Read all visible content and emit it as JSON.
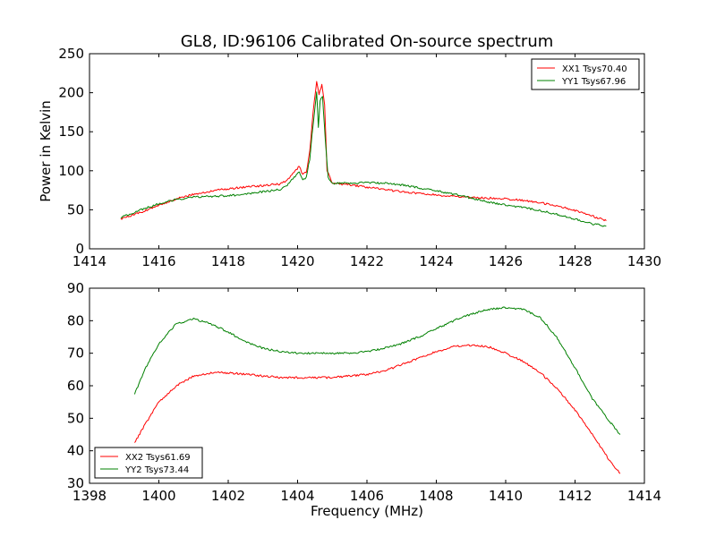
{
  "figure": {
    "title": "GL8, ID:96106 Calibrated On-source spectrum",
    "xlabel": "Frequency (MHz)",
    "ylabel": "Power in Kelvin"
  },
  "chart_data": [
    {
      "type": "line",
      "panel": "top",
      "title": "GL8, ID:96106 Calibrated On-source spectrum",
      "xlabel": "",
      "ylabel": "Power in Kelvin",
      "xlim": [
        1414,
        1430
      ],
      "ylim": [
        0,
        250
      ],
      "xticks": [
        "1414",
        "1416",
        "1418",
        "1420",
        "1422",
        "1424",
        "1426",
        "1428",
        "1430"
      ],
      "yticks": [
        "0",
        "50",
        "100",
        "150",
        "200",
        "250"
      ],
      "grid": false,
      "legend_position": "top-right",
      "series": [
        {
          "name": "XX1 Tsys70.40",
          "color": "#ff0000",
          "x": [
            1414.9,
            1415.5,
            1416.0,
            1416.5,
            1417.0,
            1417.5,
            1418.0,
            1418.5,
            1419.0,
            1419.5,
            1419.7,
            1419.9,
            1420.05,
            1420.15,
            1420.25,
            1420.35,
            1420.45,
            1420.55,
            1420.62,
            1420.7,
            1420.78,
            1420.85,
            1421.0,
            1421.5,
            1422.0,
            1422.5,
            1423.0,
            1423.5,
            1424.0,
            1424.5,
            1425.0,
            1425.5,
            1426.0,
            1426.5,
            1427.0,
            1427.5,
            1428.0,
            1428.5,
            1428.9
          ],
          "y": [
            38,
            47,
            56,
            64,
            70,
            74,
            77,
            79,
            81,
            83,
            88,
            98,
            106,
            95,
            98,
            125,
            175,
            215,
            198,
            210,
            185,
            100,
            84,
            82,
            79,
            76,
            73,
            71,
            69,
            67,
            66,
            65,
            64,
            62,
            59,
            55,
            49,
            42,
            36
          ]
        },
        {
          "name": "YY1 Tsys67.96",
          "color": "#008000",
          "x": [
            1414.9,
            1415.5,
            1416.0,
            1416.5,
            1417.0,
            1417.5,
            1418.0,
            1418.5,
            1419.0,
            1419.5,
            1419.7,
            1419.9,
            1420.05,
            1420.15,
            1420.25,
            1420.35,
            1420.45,
            1420.55,
            1420.6,
            1420.65,
            1420.72,
            1420.8,
            1420.88,
            1421.0,
            1421.5,
            1422.0,
            1422.5,
            1423.0,
            1423.5,
            1424.0,
            1424.5,
            1425.0,
            1425.5,
            1426.0,
            1426.5,
            1427.0,
            1427.5,
            1428.0,
            1428.5,
            1428.9
          ],
          "y": [
            40,
            50,
            58,
            63,
            66,
            67,
            68,
            70,
            73,
            76,
            82,
            92,
            98,
            88,
            92,
            115,
            160,
            200,
            155,
            190,
            195,
            140,
            92,
            84,
            84,
            85,
            84,
            82,
            78,
            74,
            70,
            65,
            60,
            56,
            53,
            49,
            44,
            38,
            32,
            29
          ]
        }
      ]
    },
    {
      "type": "line",
      "panel": "bottom",
      "title": "",
      "xlabel": "Frequency (MHz)",
      "ylabel": "",
      "xlim": [
        1398,
        1414
      ],
      "ylim": [
        30,
        90
      ],
      "xticks": [
        "1398",
        "1400",
        "1402",
        "1404",
        "1406",
        "1408",
        "1410",
        "1412",
        "1414"
      ],
      "yticks": [
        "30",
        "40",
        "50",
        "60",
        "70",
        "80",
        "90"
      ],
      "grid": false,
      "legend_position": "bottom-left",
      "series": [
        {
          "name": "XX2 Tsys61.69",
          "color": "#ff0000",
          "x": [
            1399.3,
            1399.6,
            1400.0,
            1400.5,
            1401.0,
            1401.5,
            1402.0,
            1402.5,
            1403.0,
            1403.5,
            1404.0,
            1404.5,
            1405.0,
            1405.5,
            1406.0,
            1406.5,
            1407.0,
            1407.5,
            1408.0,
            1408.5,
            1409.0,
            1409.5,
            1410.0,
            1410.5,
            1411.0,
            1411.5,
            1412.0,
            1412.5,
            1413.0,
            1413.3
          ],
          "y": [
            42.5,
            48,
            55,
            60,
            63,
            64,
            64,
            63.5,
            63,
            62.5,
            62.5,
            62.5,
            62.5,
            63,
            63.5,
            64.5,
            66.5,
            68.5,
            70.5,
            72,
            72.5,
            72,
            70,
            67.5,
            64,
            59,
            52.5,
            45,
            37,
            33
          ]
        },
        {
          "name": "YY2 Tsys73.44",
          "color": "#008000",
          "x": [
            1399.3,
            1399.6,
            1400.0,
            1400.5,
            1401.0,
            1401.5,
            1402.0,
            1402.5,
            1403.0,
            1403.5,
            1404.0,
            1404.5,
            1405.0,
            1405.5,
            1406.0,
            1406.5,
            1407.0,
            1407.5,
            1408.0,
            1408.5,
            1409.0,
            1409.5,
            1410.0,
            1410.5,
            1411.0,
            1411.5,
            1412.0,
            1412.5,
            1413.0,
            1413.3
          ],
          "y": [
            57.5,
            65,
            73,
            79,
            80.5,
            79,
            76.5,
            73.5,
            71.5,
            70.5,
            70,
            70,
            70,
            70,
            70.5,
            71.5,
            73,
            75,
            77.5,
            80,
            82,
            83.5,
            84,
            83.5,
            81,
            74.5,
            65.5,
            56,
            49,
            45
          ]
        }
      ]
    }
  ]
}
